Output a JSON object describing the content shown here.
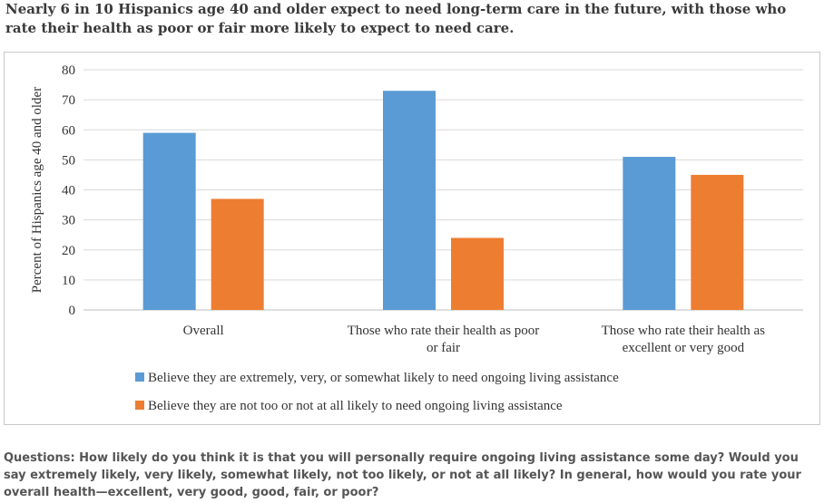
{
  "header": {
    "title_line1": "Nearly 6 in 10 Hispanics age 40 and older expect to need long-term care in the future, with those who",
    "title_line2": "rate their health as poor or fair more likely to expect to need care."
  },
  "chart_data": {
    "type": "bar",
    "categories": [
      [
        "Overall"
      ],
      [
        "Those who rate their health as poor",
        "or fair"
      ],
      [
        "Those who rate their health as",
        "excellent or very good"
      ]
    ],
    "series": [
      {
        "name": "Believe they are extremely, very, or somewhat likely to need ongoing living assistance",
        "values": [
          59,
          73,
          51
        ],
        "color": "#5b9bd5"
      },
      {
        "name": "Believe they are not too or not at all likely to need ongoing living assistance",
        "values": [
          37,
          24,
          45
        ],
        "color": "#ed7d31"
      }
    ],
    "ylabel": "Percent of Hispanics age 40 and older",
    "ylim": [
      0,
      80
    ],
    "yticks": [
      0,
      10,
      20,
      30,
      40,
      50,
      60,
      70,
      80
    ],
    "grid": true,
    "legend_position": "bottom"
  },
  "footnote": {
    "line1": "Questions: How likely do you think it is that you will personally require ongoing living assistance some day? Would you",
    "line2": "say extremely likely, very likely, somewhat likely, not too likely, or not at all likely? In general, how would you rate your",
    "line3": "overall health—excellent, very good, good, fair, or poor?"
  }
}
